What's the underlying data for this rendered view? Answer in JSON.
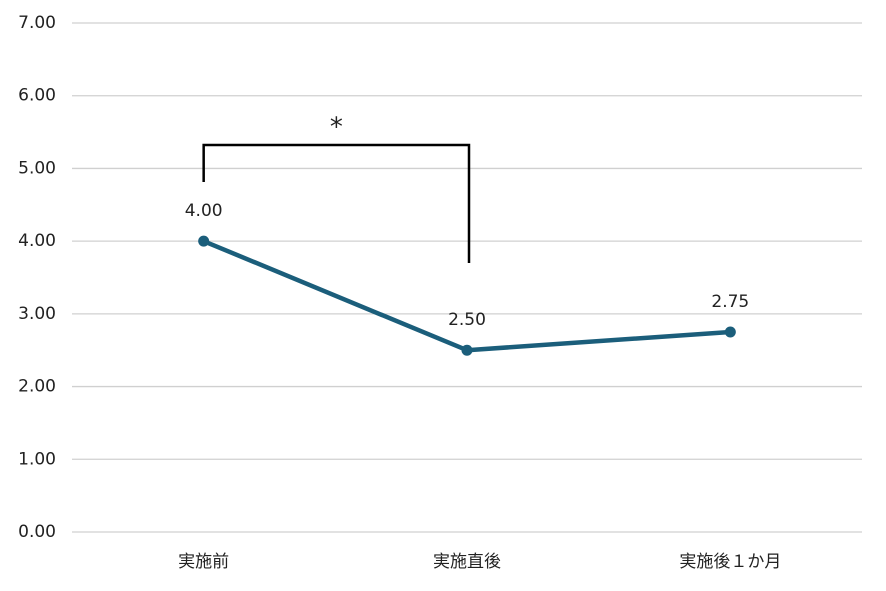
{
  "chart_data": {
    "type": "line",
    "categories": [
      "実施前",
      "実施直後",
      "実施後１か月"
    ],
    "values": [
      4.0,
      2.5,
      2.75
    ],
    "value_labels": [
      "4.00",
      "2.50",
      "2.75"
    ],
    "color": "#1b5e7b",
    "ylim": [
      0,
      7
    ],
    "yticks": [
      {
        "value": 0,
        "label": "0.00"
      },
      {
        "value": 1,
        "label": "1.00"
      },
      {
        "value": 2,
        "label": "2.00"
      },
      {
        "value": 3,
        "label": "3.00"
      },
      {
        "value": 4,
        "label": "4.00"
      },
      {
        "value": 5,
        "label": "5.00"
      },
      {
        "value": 6,
        "label": "6.00"
      },
      {
        "value": 7,
        "label": "7.00"
      }
    ],
    "grid": true,
    "annotation": "*"
  }
}
